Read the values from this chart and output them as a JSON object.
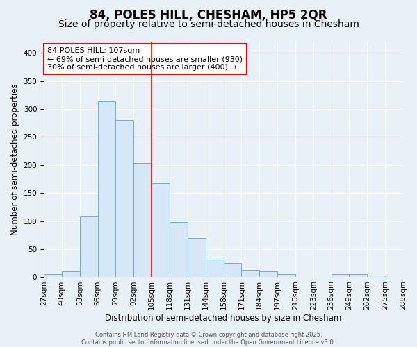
{
  "title": "84, POLES HILL, CHESHAM, HP5 2QR",
  "subtitle": "Size of property relative to semi-detached houses in Chesham",
  "xlabel": "Distribution of semi-detached houses by size in Chesham",
  "ylabel": "Number of semi-detached properties",
  "bin_labels": [
    "27sqm",
    "40sqm",
    "53sqm",
    "66sqm",
    "79sqm",
    "92sqm",
    "105sqm",
    "118sqm",
    "131sqm",
    "144sqm",
    "158sqm",
    "171sqm",
    "184sqm",
    "197sqm",
    "210sqm",
    "223sqm",
    "236sqm",
    "249sqm",
    "262sqm",
    "275sqm",
    "288sqm"
  ],
  "bar_heights": [
    5,
    10,
    110,
    313,
    280,
    203,
    168,
    98,
    70,
    32,
    25,
    13,
    11,
    5,
    0,
    0,
    6,
    6,
    3,
    0
  ],
  "bar_color": "#d6e8f7",
  "bar_edge_color": "#6aaed6",
  "ylim": [
    0,
    420
  ],
  "yticks": [
    0,
    50,
    100,
    150,
    200,
    250,
    300,
    350,
    400
  ],
  "red_line_bin_index": 6,
  "annotation_title": "84 POLES HILL: 107sqm",
  "annotation_line1": "← 69% of semi-detached houses are smaller (930)",
  "annotation_line2": "30% of semi-detached houses are larger (400) →",
  "footer_line1": "Contains HM Land Registry data © Crown copyright and database right 2025.",
  "footer_line2": "Contains public sector information licensed under the Open Government Licence v3.0.",
  "background_color": "#e8f0f8",
  "plot_background_color": "#e8f0f8",
  "grid_color": "#ffffff",
  "title_fontsize": 12,
  "subtitle_fontsize": 10,
  "axis_label_fontsize": 8.5,
  "tick_fontsize": 7.5,
  "annotation_fontsize": 8,
  "footer_fontsize": 6
}
